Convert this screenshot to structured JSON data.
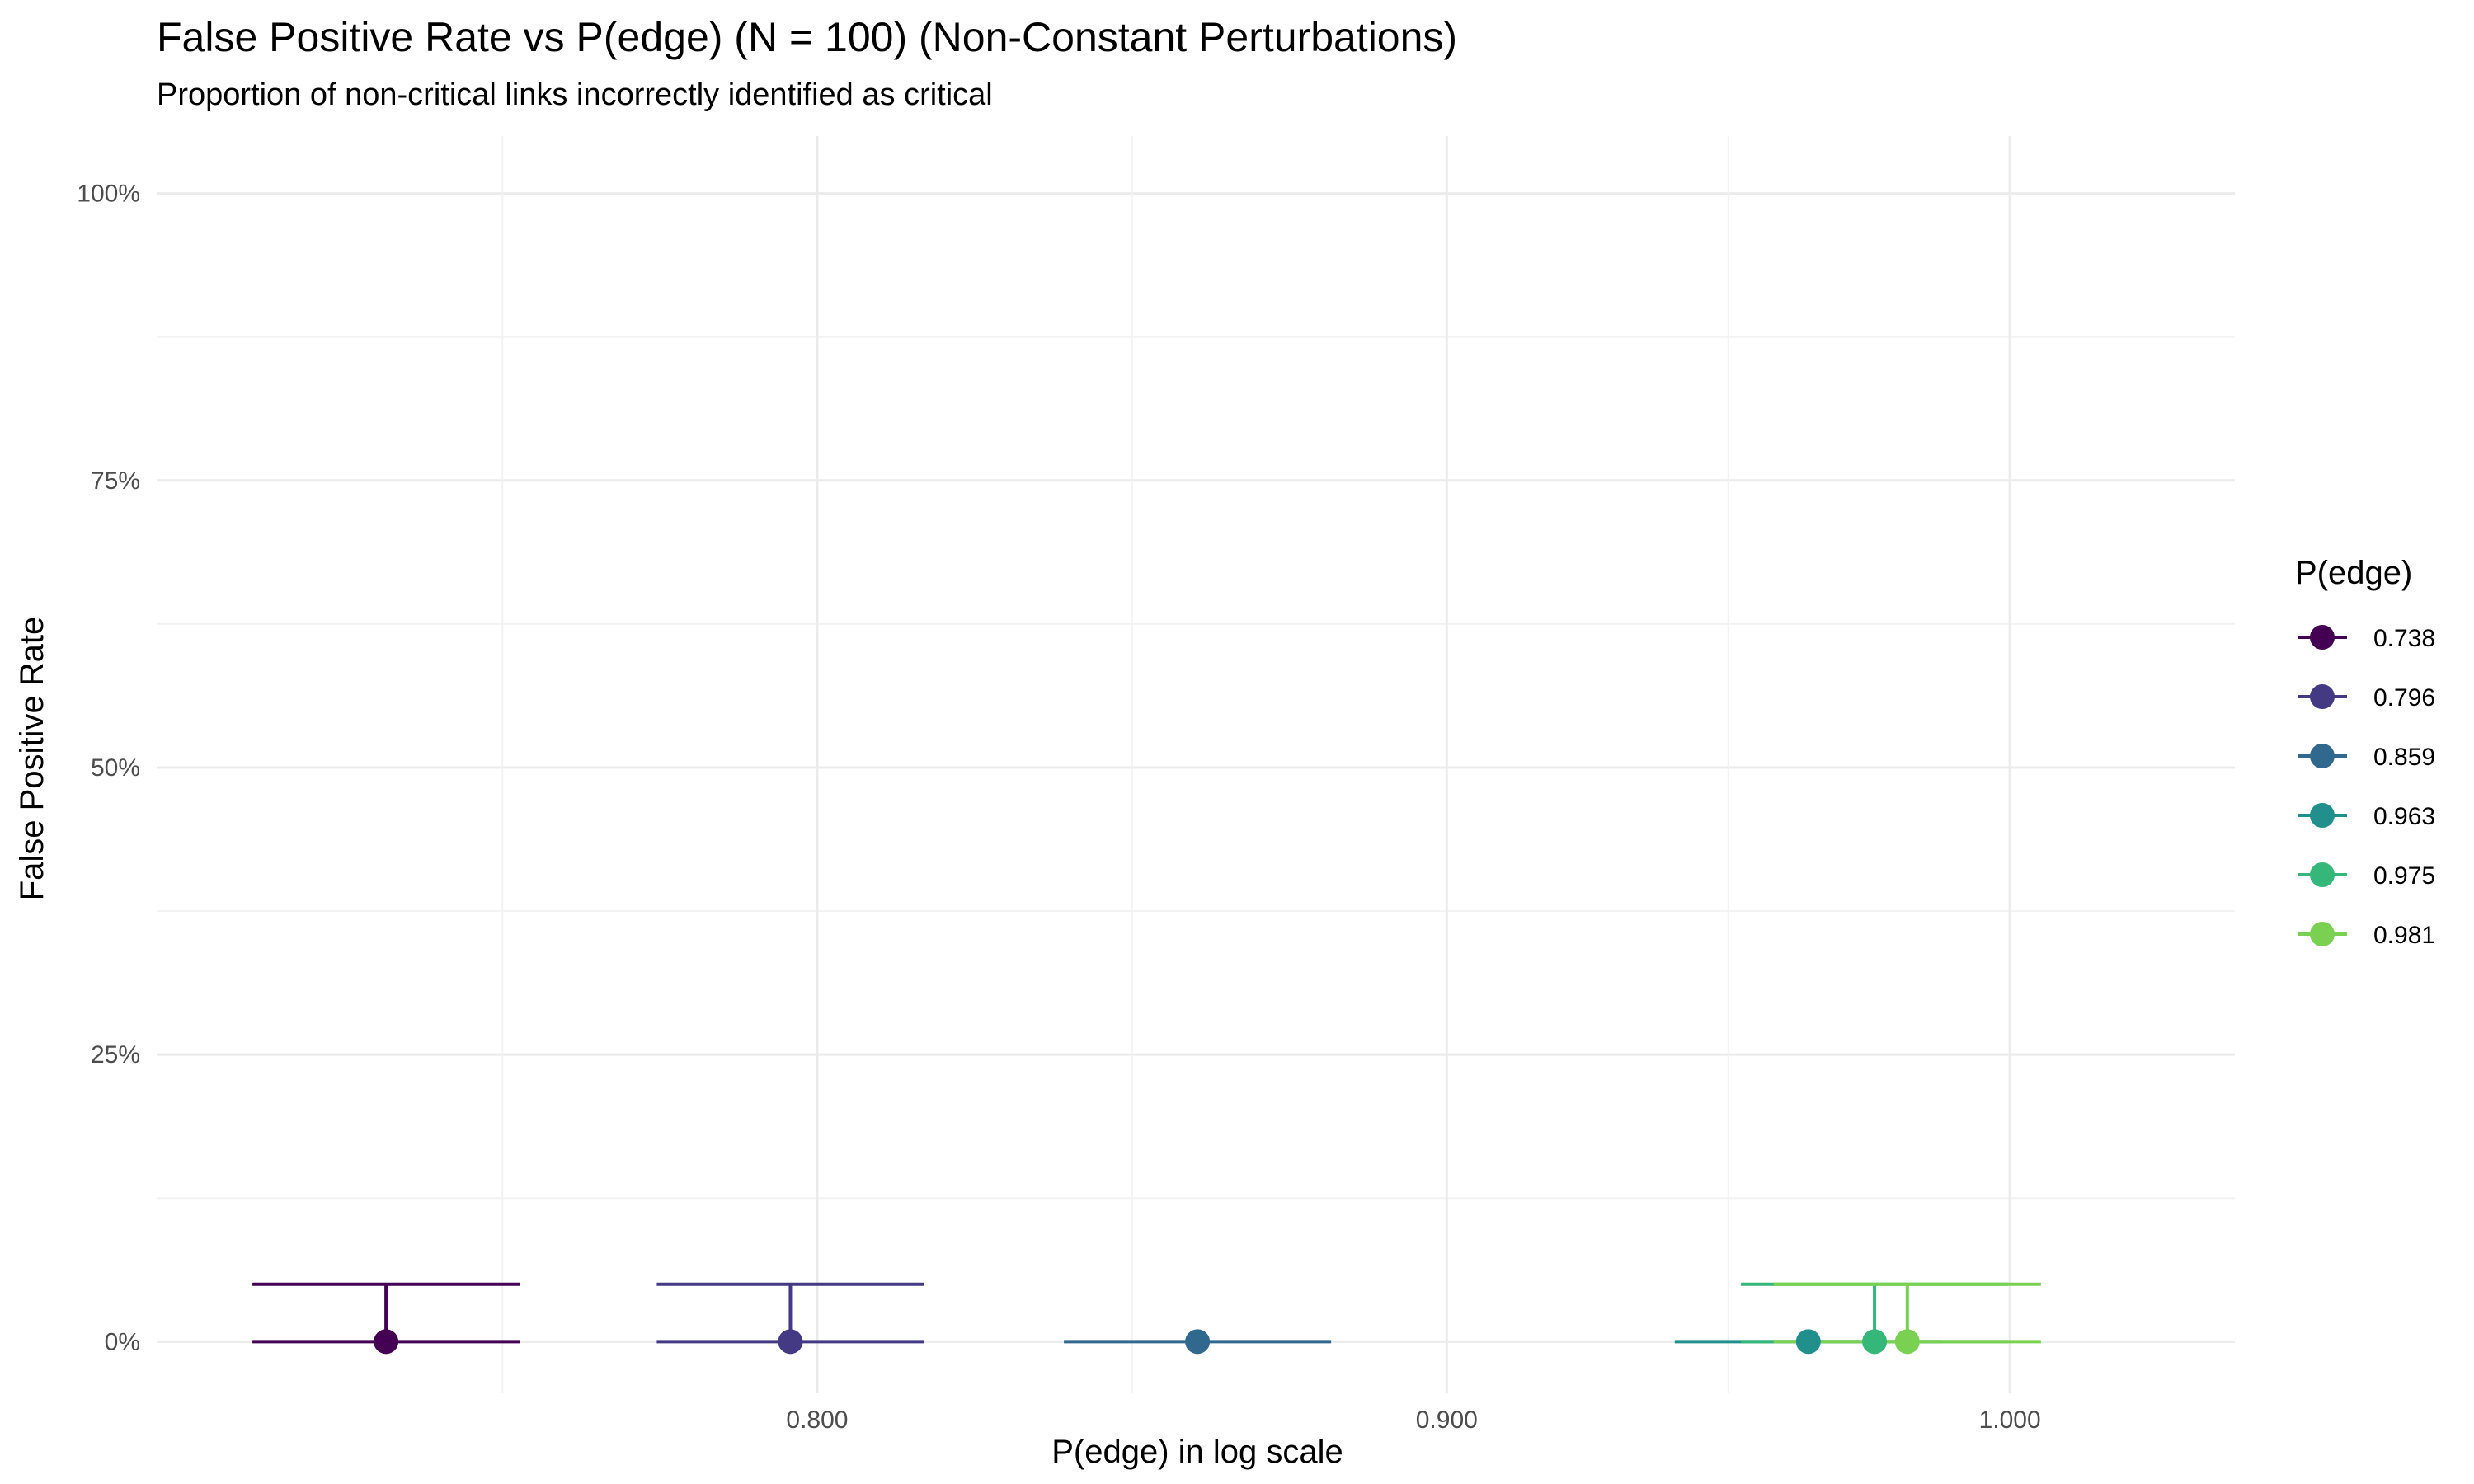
{
  "chart_data": {
    "type": "scatter",
    "title": "False Positive Rate vs P(edge) (N = 100) (Non-Constant Perturbations)",
    "subtitle": "Proportion of non-critical links incorrectly identified as critical",
    "xlabel": "P(edge) in log scale",
    "ylabel": "False Positive Rate",
    "x_scale": "log",
    "x_ticks": [
      0.8,
      0.9,
      1.0
    ],
    "x_tick_labels": [
      "0.800",
      "0.900",
      "1.000"
    ],
    "xlim": [
      0.707,
      1.043
    ],
    "y_ticks": [
      0,
      0.25,
      0.5,
      0.75,
      1.0
    ],
    "y_tick_labels": [
      "0%",
      "25%",
      "50%",
      "75%",
      "100%"
    ],
    "ylim": [
      -0.045,
      1.05
    ],
    "grid": true,
    "legend_title": "P(edge)",
    "legend_position": "right",
    "series": [
      {
        "name": "0.738",
        "color": "#440154",
        "x": 0.738,
        "y": 0,
        "ci_low": 0,
        "ci_high": 0.05
      },
      {
        "name": "0.796",
        "color": "#443A83",
        "x": 0.796,
        "y": 0,
        "ci_low": 0,
        "ci_high": 0.05
      },
      {
        "name": "0.859",
        "color": "#31688E",
        "x": 0.859,
        "y": 0,
        "ci_low": 0,
        "ci_high": 0
      },
      {
        "name": "0.963",
        "color": "#21908C",
        "x": 0.963,
        "y": 0,
        "ci_low": 0,
        "ci_high": 0
      },
      {
        "name": "0.975",
        "color": "#35B779",
        "x": 0.975,
        "y": 0,
        "ci_low": 0,
        "ci_high": 0.05
      },
      {
        "name": "0.981",
        "color": "#7AD151",
        "x": 0.981,
        "y": 0,
        "ci_low": 0,
        "ci_high": 0.05
      }
    ]
  }
}
